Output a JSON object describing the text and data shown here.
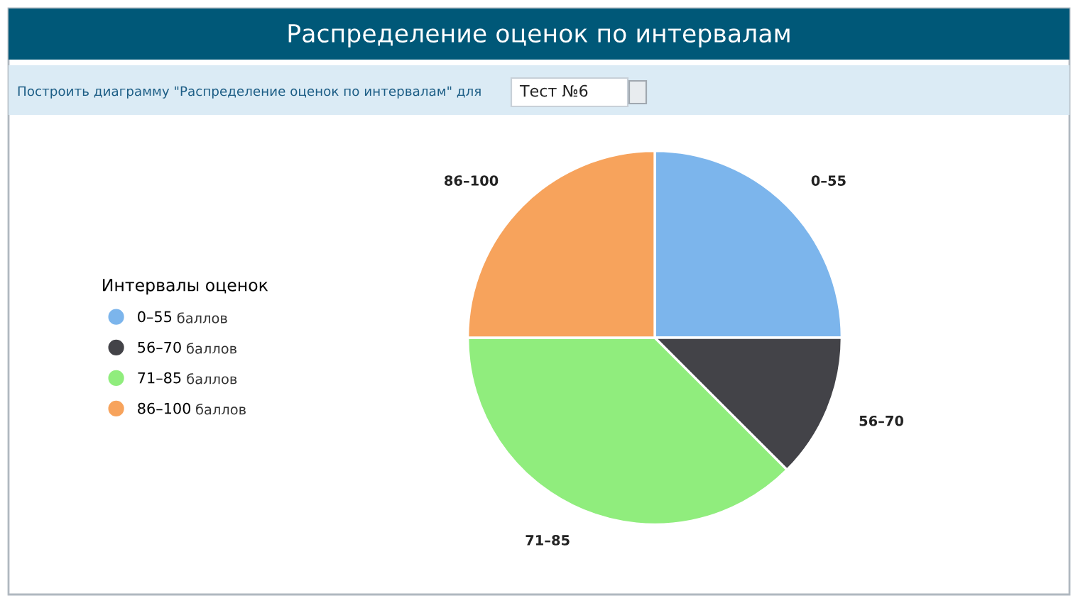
{
  "chart_data": {
    "type": "pie",
    "title": "Распределение оценок по интервалам",
    "subtitle": "Построить диаграмму \"Распределение оценок по интервалам\" для",
    "categories": [
      "0–55",
      "56–70",
      "71–85",
      "86–100"
    ],
    "values": [
      25,
      12.5,
      37.5,
      25
    ],
    "colors": [
      "#7cb5ec",
      "#434348",
      "#90ed7d",
      "#f7a35c"
    ],
    "legend": "left",
    "legend_title": "Интервалы оценок",
    "annotations": [
      "Тест №6",
      "баллов"
    ]
  }
}
